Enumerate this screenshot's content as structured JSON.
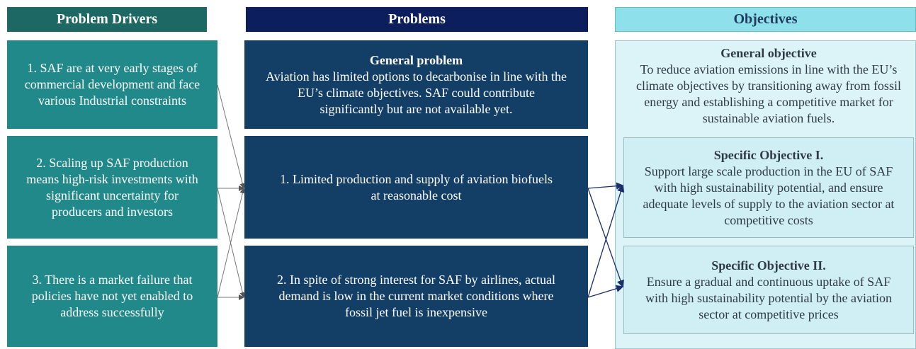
{
  "headers": {
    "drivers": "Problem Drivers",
    "problems": "Problems",
    "objectives": "Objectives"
  },
  "drivers": [
    "1.  SAF are at very early stages of commercial development and face various Industrial constraints",
    "2. Scaling up SAF production means high-risk investments with significant uncertainty for producers and investors",
    "3. There is a market failure that policies have not yet enabled to address successfully"
  ],
  "problems": {
    "general": {
      "title": "General problem",
      "text": "Aviation has limited options to decarbonise in line with the EU’s climate objectives. SAF could contribute significantly but are not available yet."
    },
    "items": [
      "1. Limited production and supply of aviation biofuels at reasonable cost",
      "2. In spite of strong interest for SAF by airlines, actual demand is low in the current market conditions where fossil jet fuel is inexpensive"
    ]
  },
  "objectives": {
    "general": {
      "title": "General objective",
      "text": "To reduce aviation emissions in line with the EU’s climate objectives by transitioning away from fossil energy and establishing a competitive market for sustainable aviation fuels."
    },
    "specific": [
      {
        "title": "Specific Objective I.",
        "text": "Support large scale production in the EU of SAF with high sustainability potential, and ensure adequate levels of supply to the aviation sector at competitive costs"
      },
      {
        "title": "Specific Objective II.",
        "text": "Ensure a gradual and continuous uptake of SAF with high sustainability potential by the aviation sector at competitive prices"
      }
    ]
  }
}
